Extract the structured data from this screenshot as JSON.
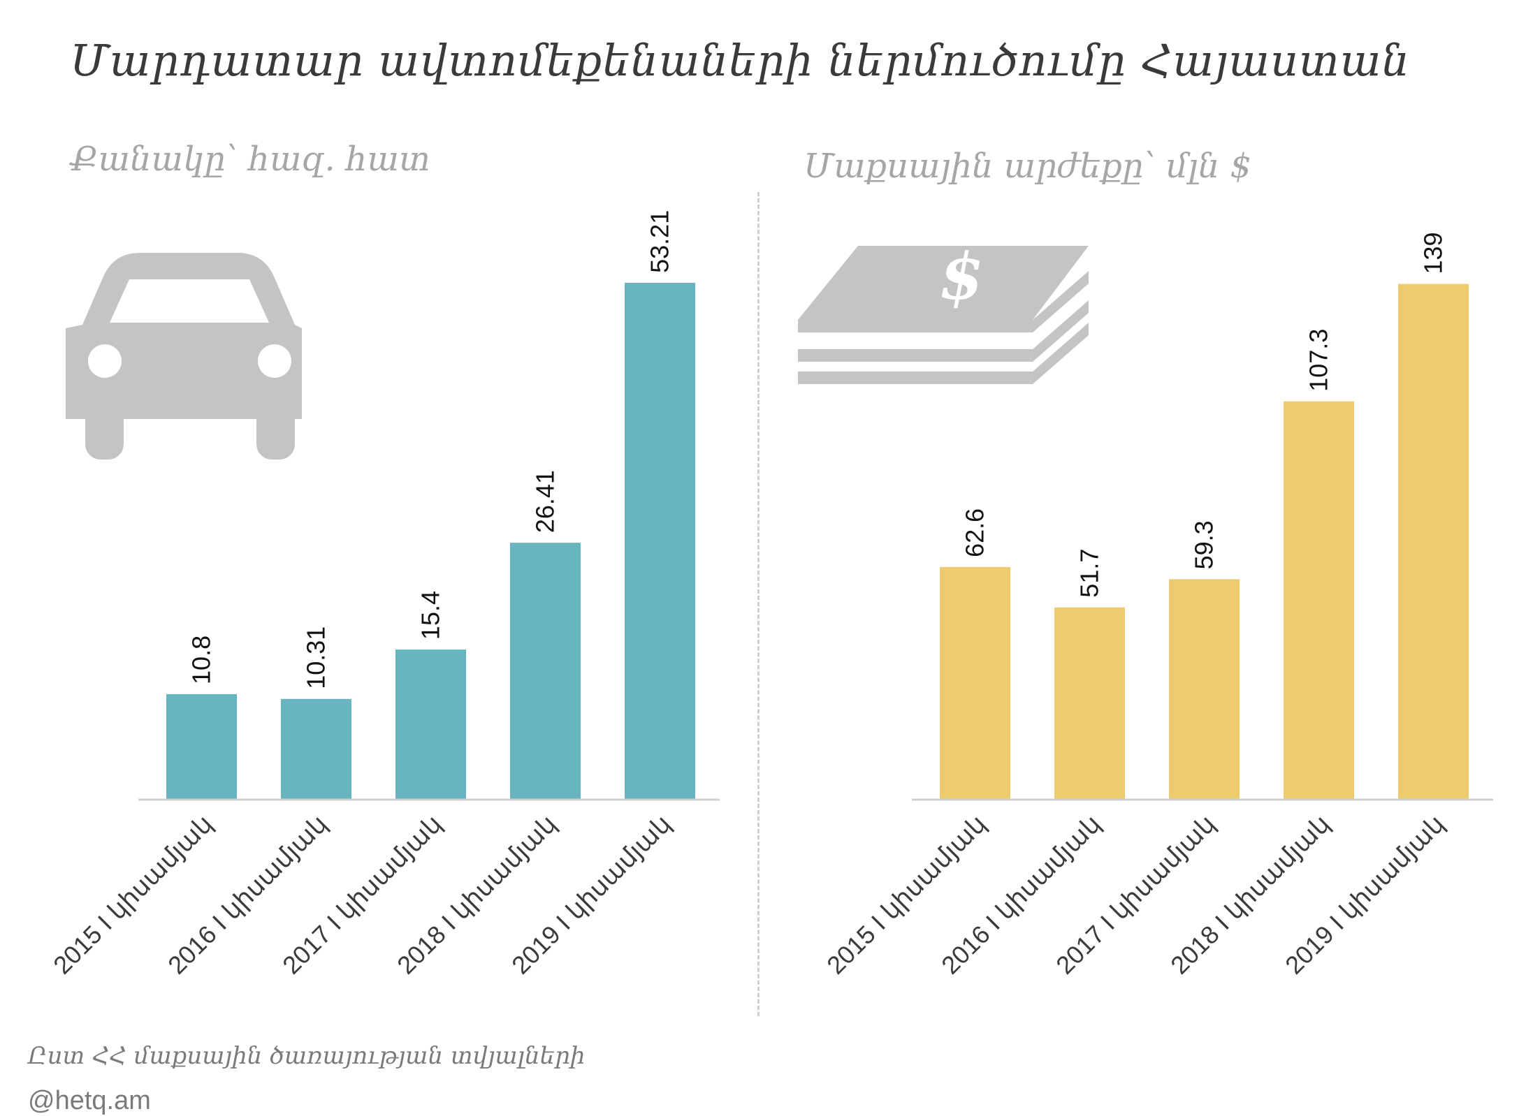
{
  "title": "Մարդատար ավտոմեքենաների ներմուծումը Հայաստան",
  "source_note": "Ըստ ՀՀ մաքսային ծառայության տվյալների",
  "handle": "@hetq.am",
  "colors": {
    "left_bar": "#68b5bf",
    "right_bar": "#efcb70",
    "icon": "#c4c4c4",
    "baseline": "#d0d0d0"
  },
  "icons": {
    "left": "car-icon",
    "right": "money-stack-icon"
  },
  "chart_data": [
    {
      "type": "bar",
      "title": "Քանակը՝ հազ. հատ",
      "categories": [
        "2015 I կիսամյակ",
        "2016 I կիսամյակ",
        "2017 I կիսամյակ",
        "2018 I կիսամյակ",
        "2019 I կիսամյակ"
      ],
      "values": [
        10.8,
        10.31,
        15.4,
        26.41,
        53.21
      ],
      "value_labels": [
        "10.8",
        "10.31",
        "15.4",
        "26.41",
        "53.21"
      ],
      "ylim": [
        0,
        55
      ]
    },
    {
      "type": "bar",
      "title": "Մաքսային արժեքը՝ մլն $",
      "categories": [
        "2015 I կիսամյակ",
        "2016 I կիսամյակ",
        "2017 I կիսամյակ",
        "2018 I կիսամյակ",
        "2019 I կիսամյակ"
      ],
      "values": [
        62.6,
        51.7,
        59.3,
        107.3,
        139
      ],
      "value_labels": [
        "62.6",
        "51.7",
        "59.3",
        "107.3",
        "139"
      ],
      "ylim": [
        0,
        144
      ]
    }
  ]
}
